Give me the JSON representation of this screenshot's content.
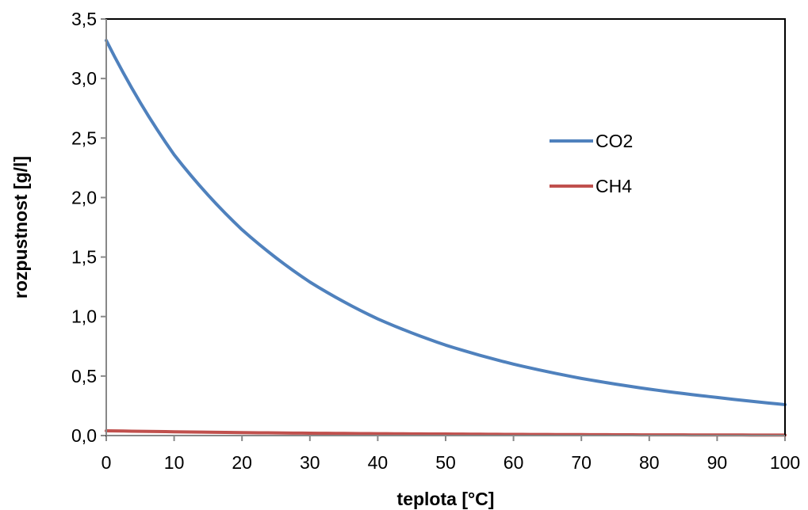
{
  "chart_data": {
    "type": "line",
    "title": "",
    "xlabel": "teplota [°C]",
    "ylabel": "rozpustnost  [g/l]",
    "xlim": [
      0,
      100
    ],
    "ylim": [
      0,
      3.5
    ],
    "xticks": [
      "0",
      "10",
      "20",
      "30",
      "40",
      "50",
      "60",
      "70",
      "80",
      "90",
      "100"
    ],
    "yticks": [
      "0,0",
      "0,5",
      "1,0",
      "1,5",
      "2,0",
      "2,5",
      "3,0",
      "3,5"
    ],
    "x": [
      0,
      10,
      20,
      30,
      40,
      50,
      60,
      70,
      80,
      90,
      100
    ],
    "series": [
      {
        "name": "CO2",
        "color": "#4F81BD",
        "values": [
          3.32,
          2.36,
          1.73,
          1.29,
          0.98,
          0.76,
          0.6,
          0.48,
          0.39,
          0.32,
          0.26
        ]
      },
      {
        "name": "CH4",
        "color": "#C0504D",
        "values": [
          0.04,
          0.032,
          0.025,
          0.02,
          0.016,
          0.013,
          0.01,
          0.008,
          0.006,
          0.005,
          0.004
        ]
      }
    ],
    "grid": false,
    "legend": "right"
  }
}
